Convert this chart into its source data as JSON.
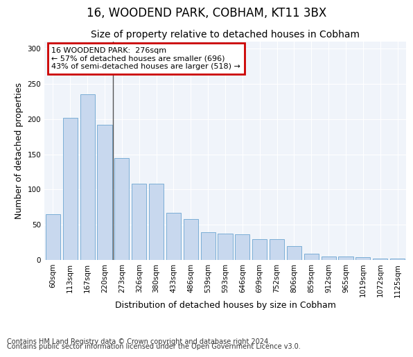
{
  "title": "16, WOODEND PARK, COBHAM, KT11 3BX",
  "subtitle": "Size of property relative to detached houses in Cobham",
  "xlabel": "Distribution of detached houses by size in Cobham",
  "ylabel": "Number of detached properties",
  "categories": [
    "60sqm",
    "113sqm",
    "167sqm",
    "220sqm",
    "273sqm",
    "326sqm",
    "380sqm",
    "433sqm",
    "486sqm",
    "539sqm",
    "593sqm",
    "646sqm",
    "699sqm",
    "752sqm",
    "806sqm",
    "859sqm",
    "912sqm",
    "965sqm",
    "1019sqm",
    "1072sqm",
    "1125sqm"
  ],
  "values": [
    65,
    202,
    235,
    192,
    145,
    108,
    108,
    67,
    58,
    39,
    37,
    36,
    30,
    30,
    20,
    9,
    5,
    5,
    4,
    2,
    2
  ],
  "bar_color": "#c8d8ee",
  "bar_edge_color": "#7aaed6",
  "annotation_text": "16 WOODEND PARK:  276sqm\n← 57% of detached houses are smaller (696)\n43% of semi-detached houses are larger (518) →",
  "annotation_box_color": "#ffffff",
  "annotation_border_color": "#cc0000",
  "property_bar_index": 4,
  "vline_x": 3.5,
  "ylim": [
    0,
    310
  ],
  "yticks": [
    0,
    50,
    100,
    150,
    200,
    250,
    300
  ],
  "footer_line1": "Contains HM Land Registry data © Crown copyright and database right 2024.",
  "footer_line2": "Contains public sector information licensed under the Open Government Licence v3.0.",
  "bg_color": "#ffffff",
  "plot_bg_color": "#f0f4fa",
  "title_fontsize": 12,
  "subtitle_fontsize": 10,
  "axis_label_fontsize": 9,
  "tick_fontsize": 7.5,
  "footer_fontsize": 7
}
